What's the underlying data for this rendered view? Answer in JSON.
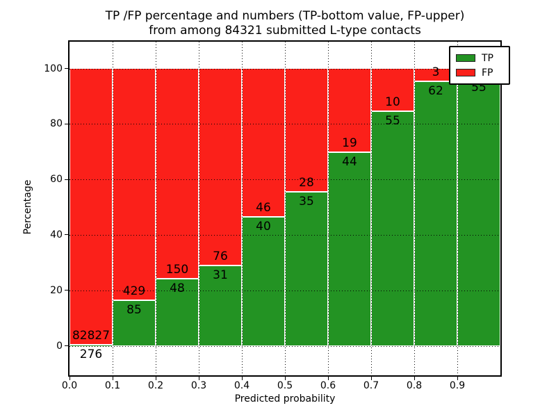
{
  "figure": {
    "title_line1": "TP /FP percentage and numbers (TP-bottom value, FP-upper)",
    "title_line2": "from among 84321 submitted L-type contacts"
  },
  "axes": {
    "xlabel": "Predicted probability",
    "ylabel": "Percentage",
    "x_tick_labels": [
      "0.0",
      "0.1",
      "0.2",
      "0.3",
      "0.4",
      "0.5",
      "0.6",
      "0.7",
      "0.8",
      "0.9"
    ],
    "y_tick_labels": [
      "0",
      "20",
      "40",
      "60",
      "80",
      "100"
    ],
    "y_tick_values": [
      0,
      20,
      40,
      60,
      80,
      100
    ]
  },
  "legend": {
    "items": [
      {
        "label": "TP",
        "color_key": "tp"
      },
      {
        "label": "FP",
        "color_key": "fp"
      }
    ]
  },
  "colors": {
    "tp": "#239323",
    "fp": "#fb201a",
    "frame": "#000000",
    "grid": "#000000",
    "background": "#ffffff"
  },
  "chart_data": {
    "type": "bar",
    "stacked": true,
    "normalized_to_percent": true,
    "title": "TP /FP percentage and numbers (TP-bottom value, FP-upper) from among 84321 submitted L-type contacts",
    "xlabel": "Predicted probability",
    "ylabel": "Percentage",
    "xlim": [
      0.0,
      1.0
    ],
    "ylim": [
      0,
      100
    ],
    "grid": true,
    "legend_position": "upper right",
    "bin_start": [
      0.0,
      0.1,
      0.2,
      0.3,
      0.4,
      0.5,
      0.6,
      0.7,
      0.8,
      0.9
    ],
    "bin_width": 0.1,
    "total_submitted": 84321,
    "series": [
      {
        "name": "TP",
        "counts": [
          276,
          85,
          48,
          31,
          40,
          35,
          44,
          55,
          62,
          55
        ],
        "pct": [
          0.33,
          16.54,
          24.24,
          28.97,
          46.51,
          55.56,
          69.84,
          84.62,
          95.38,
          96.5
        ]
      },
      {
        "name": "FP",
        "counts": [
          82827,
          429,
          150,
          76,
          46,
          28,
          19,
          10,
          3,
          null
        ],
        "pct": [
          99.67,
          83.46,
          75.76,
          71.03,
          53.49,
          44.44,
          30.16,
          15.38,
          4.62,
          3.5
        ]
      }
    ]
  }
}
